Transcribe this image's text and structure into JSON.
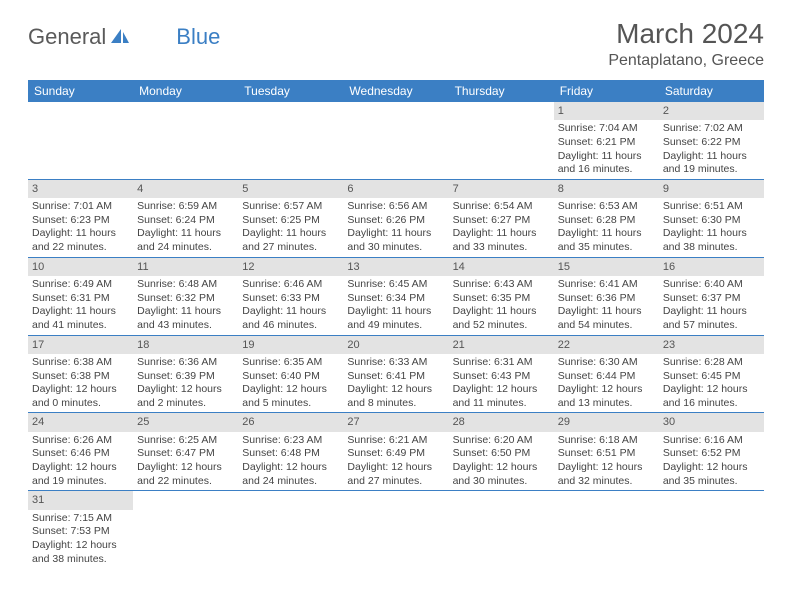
{
  "logo": {
    "text1": "General",
    "text2": "Blue",
    "sail_color": "#3b7fc4"
  },
  "title": "March 2024",
  "location": "Pentaplatano, Greece",
  "weekdays": [
    "Sunday",
    "Monday",
    "Tuesday",
    "Wednesday",
    "Thursday",
    "Friday",
    "Saturday"
  ],
  "colors": {
    "header_bg": "#3b7fc4",
    "daynum_bg": "#e3e3e3",
    "rule": "#3b7fc4"
  },
  "cells": [
    [
      {
        "blank": true
      },
      {
        "blank": true
      },
      {
        "blank": true
      },
      {
        "blank": true
      },
      {
        "blank": true
      },
      {
        "n": "1",
        "sr": "7:04 AM",
        "ss": "6:21 PM",
        "dl": "11 hours and 16 minutes."
      },
      {
        "n": "2",
        "sr": "7:02 AM",
        "ss": "6:22 PM",
        "dl": "11 hours and 19 minutes."
      }
    ],
    [
      {
        "n": "3",
        "sr": "7:01 AM",
        "ss": "6:23 PM",
        "dl": "11 hours and 22 minutes."
      },
      {
        "n": "4",
        "sr": "6:59 AM",
        "ss": "6:24 PM",
        "dl": "11 hours and 24 minutes."
      },
      {
        "n": "5",
        "sr": "6:57 AM",
        "ss": "6:25 PM",
        "dl": "11 hours and 27 minutes."
      },
      {
        "n": "6",
        "sr": "6:56 AM",
        "ss": "6:26 PM",
        "dl": "11 hours and 30 minutes."
      },
      {
        "n": "7",
        "sr": "6:54 AM",
        "ss": "6:27 PM",
        "dl": "11 hours and 33 minutes."
      },
      {
        "n": "8",
        "sr": "6:53 AM",
        "ss": "6:28 PM",
        "dl": "11 hours and 35 minutes."
      },
      {
        "n": "9",
        "sr": "6:51 AM",
        "ss": "6:30 PM",
        "dl": "11 hours and 38 minutes."
      }
    ],
    [
      {
        "n": "10",
        "sr": "6:49 AM",
        "ss": "6:31 PM",
        "dl": "11 hours and 41 minutes."
      },
      {
        "n": "11",
        "sr": "6:48 AM",
        "ss": "6:32 PM",
        "dl": "11 hours and 43 minutes."
      },
      {
        "n": "12",
        "sr": "6:46 AM",
        "ss": "6:33 PM",
        "dl": "11 hours and 46 minutes."
      },
      {
        "n": "13",
        "sr": "6:45 AM",
        "ss": "6:34 PM",
        "dl": "11 hours and 49 minutes."
      },
      {
        "n": "14",
        "sr": "6:43 AM",
        "ss": "6:35 PM",
        "dl": "11 hours and 52 minutes."
      },
      {
        "n": "15",
        "sr": "6:41 AM",
        "ss": "6:36 PM",
        "dl": "11 hours and 54 minutes."
      },
      {
        "n": "16",
        "sr": "6:40 AM",
        "ss": "6:37 PM",
        "dl": "11 hours and 57 minutes."
      }
    ],
    [
      {
        "n": "17",
        "sr": "6:38 AM",
        "ss": "6:38 PM",
        "dl": "12 hours and 0 minutes."
      },
      {
        "n": "18",
        "sr": "6:36 AM",
        "ss": "6:39 PM",
        "dl": "12 hours and 2 minutes."
      },
      {
        "n": "19",
        "sr": "6:35 AM",
        "ss": "6:40 PM",
        "dl": "12 hours and 5 minutes."
      },
      {
        "n": "20",
        "sr": "6:33 AM",
        "ss": "6:41 PM",
        "dl": "12 hours and 8 minutes."
      },
      {
        "n": "21",
        "sr": "6:31 AM",
        "ss": "6:43 PM",
        "dl": "12 hours and 11 minutes."
      },
      {
        "n": "22",
        "sr": "6:30 AM",
        "ss": "6:44 PM",
        "dl": "12 hours and 13 minutes."
      },
      {
        "n": "23",
        "sr": "6:28 AM",
        "ss": "6:45 PM",
        "dl": "12 hours and 16 minutes."
      }
    ],
    [
      {
        "n": "24",
        "sr": "6:26 AM",
        "ss": "6:46 PM",
        "dl": "12 hours and 19 minutes."
      },
      {
        "n": "25",
        "sr": "6:25 AM",
        "ss": "6:47 PM",
        "dl": "12 hours and 22 minutes."
      },
      {
        "n": "26",
        "sr": "6:23 AM",
        "ss": "6:48 PM",
        "dl": "12 hours and 24 minutes."
      },
      {
        "n": "27",
        "sr": "6:21 AM",
        "ss": "6:49 PM",
        "dl": "12 hours and 27 minutes."
      },
      {
        "n": "28",
        "sr": "6:20 AM",
        "ss": "6:50 PM",
        "dl": "12 hours and 30 minutes."
      },
      {
        "n": "29",
        "sr": "6:18 AM",
        "ss": "6:51 PM",
        "dl": "12 hours and 32 minutes."
      },
      {
        "n": "30",
        "sr": "6:16 AM",
        "ss": "6:52 PM",
        "dl": "12 hours and 35 minutes."
      }
    ],
    [
      {
        "n": "31",
        "sr": "7:15 AM",
        "ss": "7:53 PM",
        "dl": "12 hours and 38 minutes."
      },
      {
        "blank": true
      },
      {
        "blank": true
      },
      {
        "blank": true
      },
      {
        "blank": true
      },
      {
        "blank": true
      },
      {
        "blank": true
      }
    ]
  ],
  "labels": {
    "sunrise": "Sunrise: ",
    "sunset": "Sunset: ",
    "daylight": "Daylight: "
  }
}
